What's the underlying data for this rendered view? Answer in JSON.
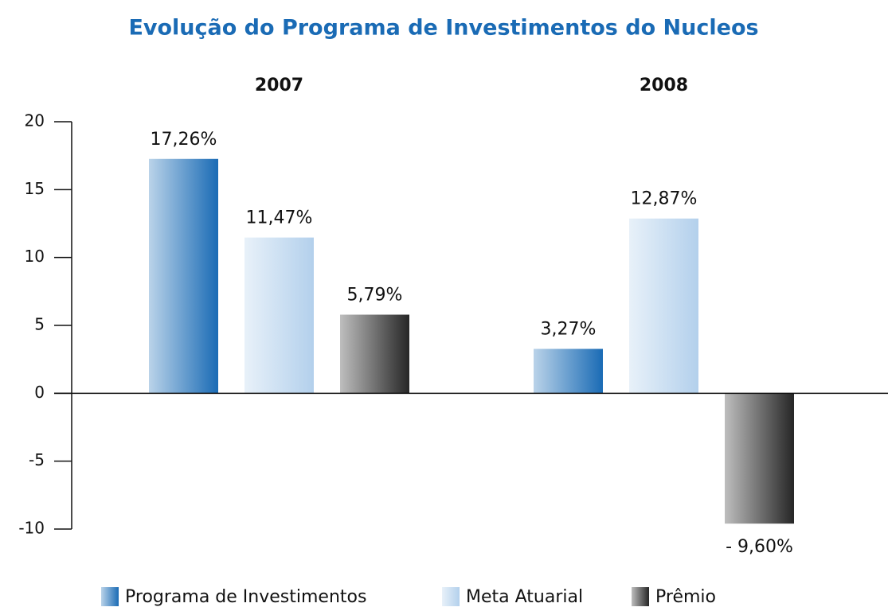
{
  "chart_data": {
    "type": "bar",
    "title": "Evolução do Programa de Investimentos do Nucleos",
    "categories": [
      "2007",
      "2008"
    ],
    "series": [
      {
        "name": "Programa de Investimentos",
        "color": "#1a6bb5",
        "values": [
          17.26,
          3.27
        ],
        "value_labels": [
          "17,26%",
          "3,27%"
        ]
      },
      {
        "name": "Meta Atuarial",
        "color": "#b3d0ec",
        "values": [
          11.47,
          12.87
        ],
        "value_labels": [
          "11,47%",
          "12,87%"
        ]
      },
      {
        "name": "Prêmio",
        "color": "#262626",
        "values": [
          5.79,
          -9.6
        ],
        "value_labels": [
          "5,79%",
          "- 9,60%"
        ]
      }
    ],
    "ylim": [
      -10,
      20
    ],
    "yticks": [
      20,
      15,
      10,
      5,
      0,
      -5,
      -10
    ],
    "legend": "bottom"
  }
}
